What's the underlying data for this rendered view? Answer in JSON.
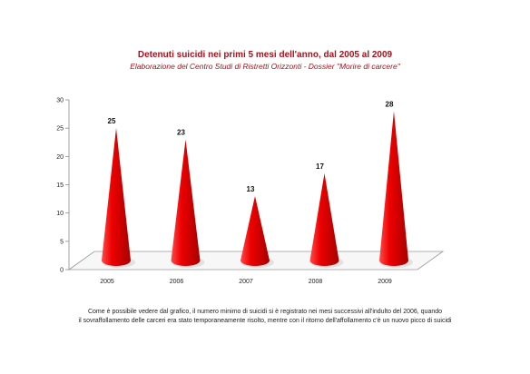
{
  "chart_data": {
    "type": "bar",
    "title": "Detenuti suicidi nei primi 5 mesi dell'anno, dal 2005 al 2009",
    "subtitle": "Elaborazione del Centro Studi di Ristretti Orizzonti - Dossier \"Morire di carcere\"",
    "categories": [
      "2005",
      "2006",
      "2007",
      "2008",
      "2009"
    ],
    "values": [
      25,
      23,
      13,
      17,
      28
    ],
    "data_labels": [
      "25",
      "23",
      "13",
      "17",
      "28"
    ],
    "yticks": [
      "0",
      "5",
      "10",
      "15",
      "20",
      "25",
      "30"
    ],
    "ylim": [
      0,
      30
    ],
    "xlabel": "",
    "ylabel": "",
    "grid": false,
    "legend": "none",
    "mark_shape": "cone",
    "colors": {
      "cone_light": "#ff4a4a",
      "cone_mid": "#ee0000",
      "cone_dark": "#a80000",
      "title": "#a8111c"
    }
  },
  "caption": {
    "line1": "Come è possibile vedere dal grafico, il numero minimo di suicidi si è registrato nei mesi successivi all'indulto del 2006, quando",
    "line2": "il sovraffollamento delle carceri era stato temporaneamente risolto, mentre con il ritorno dell'affollamento c'è un nuovo picco di suicidi"
  }
}
